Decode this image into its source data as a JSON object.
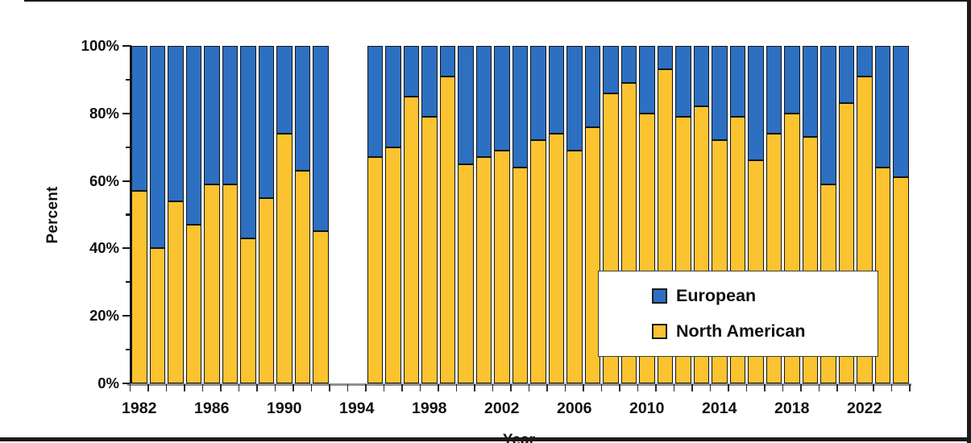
{
  "figure": {
    "y_axis_title": "Percent",
    "x_axis_title": "Year",
    "legend": [
      {
        "label": "European",
        "color": "#2D6FC1"
      },
      {
        "label": "North American",
        "color": "#FBC330"
      }
    ],
    "colors": {
      "european_blue": "#2D6FC1",
      "north_american_yellow": "#FBC330",
      "bar_outline": "#141414",
      "axis_gray": "#8f8f8f",
      "frame_black": "#1a1a1a"
    }
  },
  "chart_data": {
    "type": "bar",
    "stacked": true,
    "title": "",
    "xlabel": "Year",
    "ylabel": "Percent",
    "ylim": [
      0,
      100
    ],
    "grid": false,
    "legend_position": "lower right",
    "ytick_labels": [
      "0%",
      "20%",
      "40%",
      "60%",
      "80%",
      "100%"
    ],
    "xtick_labels": [
      "1982",
      "1986",
      "1990",
      "1994",
      "1998",
      "2002",
      "2006",
      "2010",
      "2014",
      "2018",
      "2022"
    ],
    "missing_years": [
      1993,
      1994
    ],
    "categories": [
      1982,
      1983,
      1984,
      1985,
      1986,
      1987,
      1988,
      1989,
      1990,
      1991,
      1992,
      1993,
      1994,
      1995,
      1996,
      1997,
      1998,
      1999,
      2000,
      2001,
      2002,
      2003,
      2004,
      2005,
      2006,
      2007,
      2008,
      2009,
      2010,
      2011,
      2012,
      2013,
      2014,
      2015,
      2016,
      2017,
      2018,
      2019,
      2020,
      2021,
      2022,
      2023,
      2024
    ],
    "series": [
      {
        "name": "North American",
        "color": "#FBC330",
        "values": [
          57,
          40,
          54,
          47,
          59,
          59,
          43,
          55,
          74,
          63,
          45,
          null,
          null,
          67,
          70,
          85,
          79,
          91,
          65,
          67,
          69,
          64,
          72,
          74,
          69,
          76,
          86,
          89,
          80,
          93,
          79,
          82,
          72,
          79,
          66,
          74,
          80,
          73,
          59,
          83,
          91,
          64,
          61
        ]
      },
      {
        "name": "European",
        "color": "#2D6FC1",
        "values": [
          43,
          60,
          46,
          53,
          41,
          41,
          57,
          45,
          26,
          37,
          55,
          null,
          null,
          33,
          30,
          15,
          21,
          9,
          35,
          33,
          31,
          36,
          28,
          26,
          31,
          24,
          14,
          11,
          20,
          7,
          21,
          18,
          28,
          21,
          34,
          26,
          20,
          27,
          41,
          17,
          9,
          36,
          39
        ]
      }
    ]
  }
}
